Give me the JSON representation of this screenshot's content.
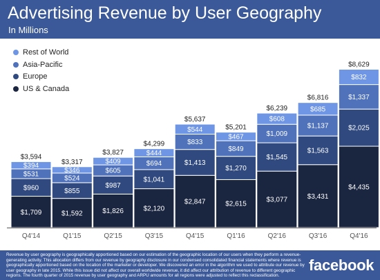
{
  "header": {
    "title": "Advertising Revenue by User Geography",
    "subtitle": "In Millions"
  },
  "colors": {
    "header_bg": "#3b5998",
    "rest_of_world": "#6f96e4",
    "asia_pacific": "#4f72bb",
    "europe": "#304a7f",
    "us_canada": "#1a2540",
    "axis": "#555555"
  },
  "chart_data": {
    "type": "bar",
    "stacked": true,
    "categories": [
      "Q4'14",
      "Q1'15",
      "Q2'15",
      "Q3'15",
      "Q4'15",
      "Q1'16",
      "Q2'16",
      "Q3'16",
      "Q4'16"
    ],
    "series": [
      {
        "name": "US & Canada",
        "color": "#1a2540",
        "values": [
          1709,
          1592,
          1826,
          2120,
          2847,
          2615,
          3077,
          3431,
          4435
        ]
      },
      {
        "name": "Europe",
        "color": "#304a7f",
        "values": [
          960,
          855,
          987,
          1041,
          1413,
          1270,
          1545,
          1563,
          2025
        ]
      },
      {
        "name": "Asia-Pacific",
        "color": "#4f72bb",
        "values": [
          531,
          524,
          605,
          694,
          833,
          849,
          1009,
          1137,
          1337
        ]
      },
      {
        "name": "Rest of World",
        "color": "#6f96e4",
        "values": [
          394,
          346,
          409,
          444,
          544,
          467,
          608,
          685,
          832
        ]
      }
    ],
    "totals": [
      3594,
      3317,
      3827,
      4299,
      5637,
      5201,
      6239,
      6816,
      8629
    ],
    "legend_order": [
      "Rest of World",
      "Asia-Pacific",
      "Europe",
      "US & Canada"
    ],
    "legend_position": "top-left",
    "value_prefix": "$",
    "grid": false
  },
  "footer": {
    "note": "Revenue by user geography is geographically apportioned based on our estimation of the geographic location of our users when they perform a revenue-generating activity. This allocation differs from our revenue by geography disclosure in our condensed consolidated financial statements where revenue is geographically apportioned based on the location of the marketer or developer. We discovered an error in the algorithm we used to attribute our revenue by user geography in late 2015. While this issue did not affect our overall worldwide revenue, it did affect our attribution of revenue to different geographic regions. The fourth quarter of 2015 revenue by user geography and ARPU amounts for all regions were adjusted to reflect this reclassification.",
    "logo": "facebook"
  }
}
